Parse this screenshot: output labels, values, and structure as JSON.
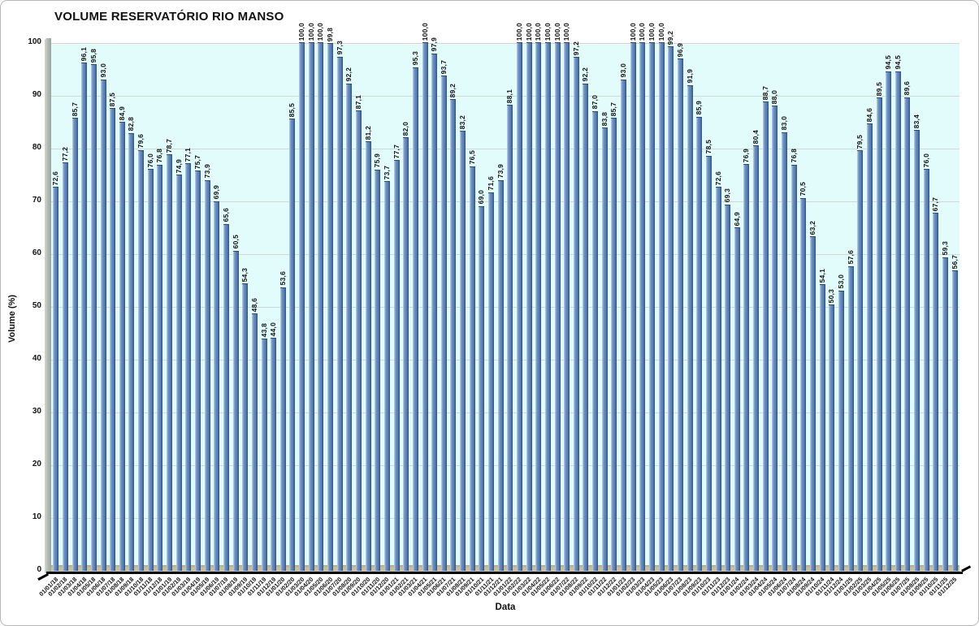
{
  "chart_data": {
    "type": "bar",
    "title": "VOLUME RESERVATÓRIO RIO MANSO",
    "xlabel": "Data",
    "ylabel": "Volume (%)",
    "ylim": [
      0,
      100
    ],
    "yticks": [
      0,
      10,
      20,
      30,
      40,
      50,
      60,
      70,
      80,
      90,
      100
    ],
    "grid": "horizontal",
    "legend": "none",
    "value_label_format": "one-decimal-comma",
    "categories": [
      "01/01/18",
      "01/02/18",
      "01/03/18",
      "01/04/18",
      "01/05/18",
      "01/06/18",
      "01/07/18",
      "01/08/18",
      "01/09/18",
      "01/10/18",
      "01/11/18",
      "01/12/18",
      "01/01/19",
      "01/02/19",
      "01/03/19",
      "01/04/19",
      "01/05/19",
      "01/06/19",
      "01/07/19",
      "01/08/19",
      "01/09/19",
      "01/10/19",
      "01/11/19",
      "01/12/19",
      "01/01/20",
      "01/02/20",
      "01/03/20",
      "01/04/20",
      "01/05/20",
      "01/06/20",
      "01/07/20",
      "01/08/20",
      "01/09/20",
      "01/10/20",
      "01/11/20",
      "01/12/20",
      "01/01/21",
      "01/02/21",
      "01/03/21",
      "01/04/21",
      "01/05/21",
      "01/06/21",
      "01/07/21",
      "01/08/21",
      "01/09/21",
      "01/10/21",
      "01/11/21",
      "01/12/21",
      "01/01/22",
      "01/02/22",
      "01/03/22",
      "01/04/22",
      "01/05/22",
      "01/06/22",
      "01/07/22",
      "01/08/22",
      "01/09/22",
      "01/10/22",
      "01/11/22",
      "01/12/22",
      "01/01/23",
      "01/02/23",
      "01/03/23",
      "01/04/23",
      "01/05/23",
      "01/06/23",
      "01/07/23",
      "01/08/23",
      "01/09/23",
      "01/10/23",
      "01/11/23",
      "01/12/23",
      "01/01/24",
      "01/02/24",
      "01/03/24",
      "01/04/24",
      "01/05/24",
      "01/06/24",
      "01/07/24",
      "01/08/24",
      "01/09/24",
      "01/10/24",
      "01/11/24",
      "01/12/24",
      "01/01/25",
      "01/02/25",
      "01/03/25",
      "01/04/25",
      "01/05/25",
      "01/06/25",
      "01/07/25",
      "01/08/25",
      "01/09/25",
      "01/10/25",
      "01/11/25",
      "01/12/25"
    ],
    "values": [
      72.6,
      77.2,
      85.7,
      96.1,
      95.8,
      93.0,
      87.5,
      84.9,
      82.8,
      79.6,
      76.0,
      76.8,
      78.7,
      74.9,
      77.1,
      75.7,
      73.9,
      69.9,
      65.6,
      60.5,
      54.3,
      48.6,
      43.8,
      44.0,
      53.6,
      85.5,
      100.0,
      100.0,
      100.0,
      99.8,
      97.3,
      92.2,
      87.1,
      81.2,
      75.9,
      73.7,
      77.7,
      82.0,
      95.3,
      100.0,
      97.9,
      93.7,
      89.2,
      83.2,
      76.5,
      69.0,
      71.6,
      73.9,
      88.1,
      100.0,
      100.0,
      100.0,
      100.0,
      100.0,
      100.0,
      97.2,
      92.2,
      87.0,
      83.8,
      85.7,
      93.0,
      100.0,
      100.0,
      100.0,
      100.0,
      99.2,
      96.9,
      91.9,
      85.9,
      78.5,
      72.6,
      69.3,
      64.9,
      76.9,
      80.4,
      88.7,
      88.0,
      83.0,
      76.8,
      70.5,
      63.2,
      54.1,
      50.3,
      53.0,
      57.6,
      79.5,
      84.6,
      89.5,
      94.5,
      94.5,
      89.6,
      83.4,
      76.0,
      67.7,
      59.3,
      56.7
    ],
    "colors": {
      "bar_main": "#5c82b8",
      "bar_highlight": "#c3d4ea",
      "bar_shadow": "#30538a",
      "plot_bg": "#e2fbfb",
      "wall": "#b4bdb5",
      "floor": "#cbc199",
      "gridline": "#d2d7d5",
      "axis": "#000000",
      "text": "#141414",
      "frame_bg": "#ffffff"
    }
  }
}
